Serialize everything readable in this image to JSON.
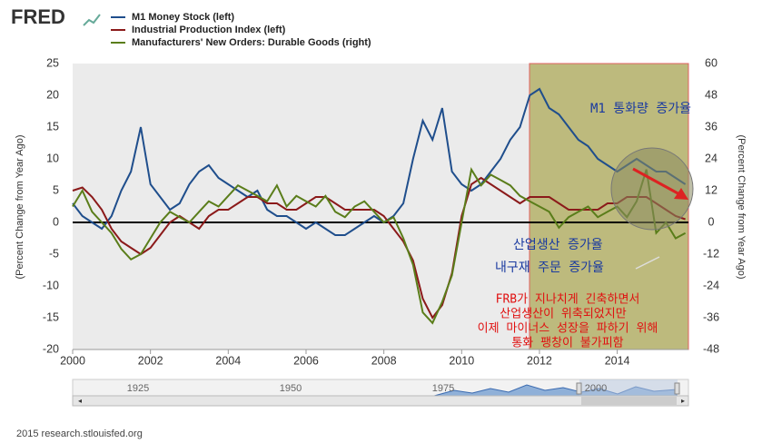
{
  "chart_data": {
    "type": "line",
    "logo": "FRED",
    "footer": "2015 research.stlouisfed.org",
    "ylabel": "(Percent Change from Year Ago)",
    "y2label": "(Percent Change from Year Ago)",
    "x": [
      2000,
      2000.25,
      2000.5,
      2000.75,
      2001,
      2001.25,
      2001.5,
      2001.75,
      2002,
      2002.25,
      2002.5,
      2002.75,
      2003,
      2003.25,
      2003.5,
      2003.75,
      2004,
      2004.25,
      2004.5,
      2004.75,
      2005,
      2005.25,
      2005.5,
      2005.75,
      2006,
      2006.25,
      2006.5,
      2006.75,
      2007,
      2007.25,
      2007.5,
      2007.75,
      2008,
      2008.25,
      2008.5,
      2008.75,
      2009,
      2009.25,
      2009.5,
      2009.75,
      2010,
      2010.25,
      2010.5,
      2010.75,
      2011,
      2011.25,
      2011.5,
      2011.75,
      2012,
      2012.25,
      2012.5,
      2012.75,
      2013,
      2013.25,
      2013.5,
      2013.75,
      2014,
      2014.25,
      2014.5,
      2014.75,
      2015,
      2015.25,
      2015.5,
      2015.75
    ],
    "series": [
      {
        "name": "M1 Money Stock (left)",
        "color": "#1f4e8c",
        "values": [
          3,
          1,
          0,
          -1,
          1,
          5,
          8,
          15,
          6,
          4,
          2,
          3,
          6,
          8,
          9,
          7,
          6,
          5,
          4,
          5,
          2,
          1,
          1,
          0,
          -1,
          0,
          -1,
          -2,
          -2,
          -1,
          0,
          1,
          0,
          1,
          3,
          10,
          16,
          13,
          18,
          8,
          6,
          5,
          6,
          8,
          10,
          13,
          15,
          20,
          21,
          18,
          17,
          15,
          13,
          12,
          10,
          9,
          8,
          9,
          10,
          9,
          8,
          8,
          7,
          6
        ]
      },
      {
        "name": "Industrial Production Index (left)",
        "color": "#8b1a1a",
        "values": [
          5,
          5.5,
          4,
          2,
          -1,
          -3,
          -4,
          -5,
          -4,
          -2,
          0,
          1,
          0,
          -1,
          1,
          2,
          2,
          3,
          4,
          4,
          3,
          3,
          2,
          2,
          3,
          4,
          4,
          3,
          2,
          2,
          2,
          2,
          1,
          -1,
          -3,
          -6,
          -12,
          -15,
          -13,
          -8,
          1,
          6,
          7,
          6,
          5,
          4,
          3,
          4,
          4,
          4,
          3,
          2,
          2,
          2,
          2,
          3,
          3,
          4,
          4,
          4,
          3,
          2,
          1,
          0.5
        ]
      },
      {
        "name": "Manufacturers' New Orders: Durable Goods (right)",
        "color": "#5a7d1a",
        "axis": "y2",
        "values": [
          6,
          12,
          4,
          0,
          -4,
          -10,
          -14,
          -12,
          -6,
          0,
          4,
          2,
          0,
          4,
          8,
          6,
          10,
          14,
          12,
          10,
          8,
          14,
          6,
          10,
          8,
          6,
          10,
          4,
          2,
          6,
          8,
          4,
          0,
          2,
          -6,
          -16,
          -34,
          -38,
          -30,
          -20,
          0,
          20,
          14,
          18,
          16,
          14,
          10,
          8,
          6,
          4,
          -2,
          2,
          4,
          6,
          2,
          4,
          6,
          2,
          8,
          20,
          -4,
          0,
          -6,
          -4
        ]
      }
    ],
    "xlim": [
      2000,
      2015.83
    ],
    "xticks": [
      2000,
      2002,
      2004,
      2006,
      2008,
      2010,
      2012,
      2014
    ],
    "ylim": [
      -20,
      25
    ],
    "yticks": [
      -20,
      -15,
      -10,
      -5,
      0,
      5,
      10,
      15,
      20,
      25
    ],
    "y2lim": [
      -48,
      60
    ],
    "y2ticks": [
      -48,
      -36,
      -24,
      -12,
      0,
      12,
      24,
      36,
      48,
      60
    ],
    "navigator_labels": [
      "1925",
      "1950",
      "1975",
      "2000"
    ],
    "annotations": [
      "M1 통화량 증가율",
      "산업생산 증가율",
      "내구재 주문 증가율",
      "FRB가 지나치게 긴축하면서",
      "산업생산이 위축되었지만",
      "이제 마이너스 성장을 파하기 위해",
      "통화 팽창이 불가피함"
    ]
  }
}
